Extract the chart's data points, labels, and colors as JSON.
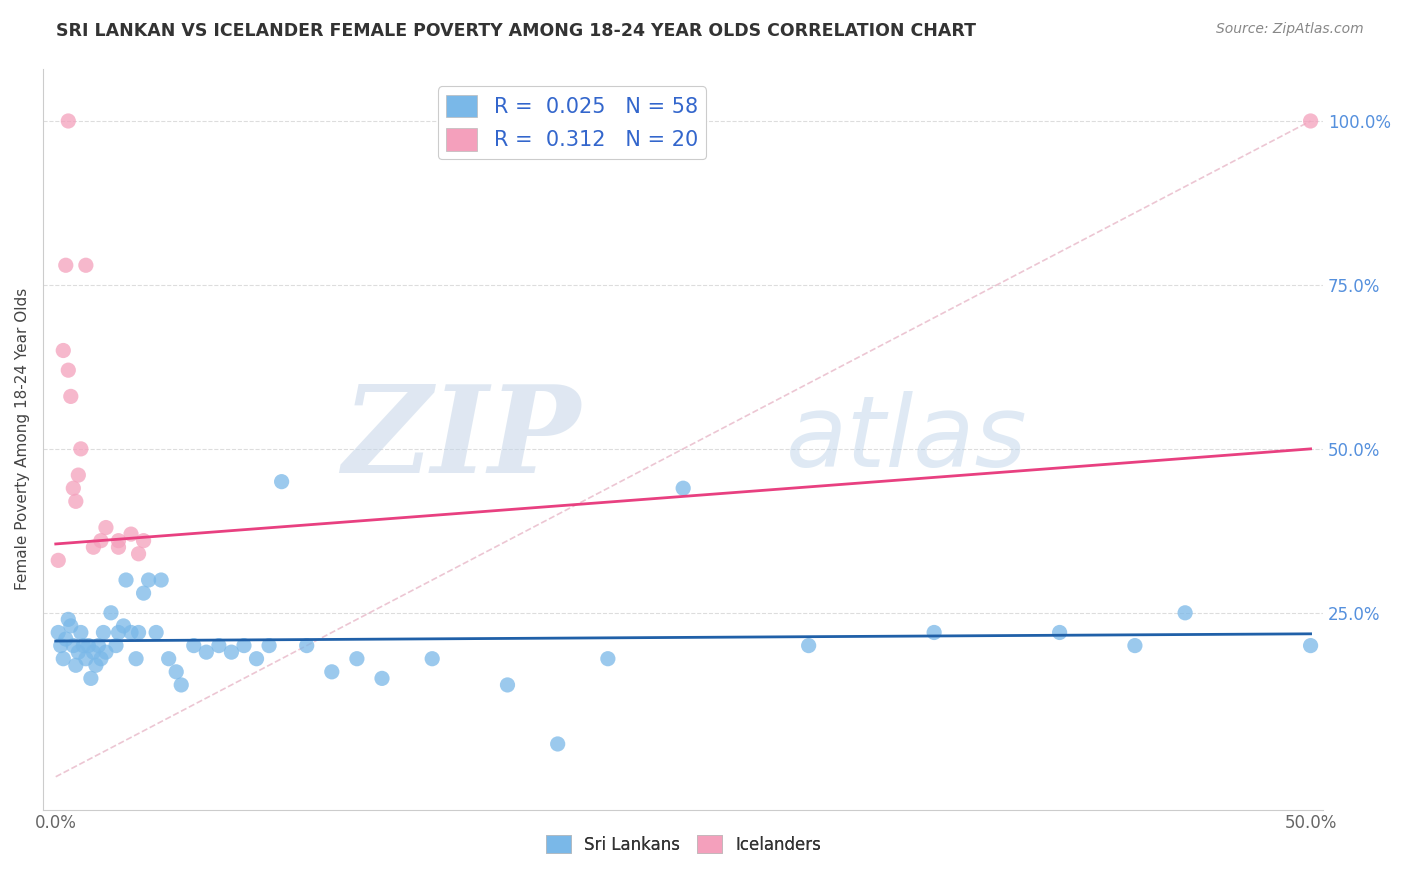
{
  "title": "SRI LANKAN VS ICELANDER FEMALE POVERTY AMONG 18-24 YEAR OLDS CORRELATION CHART",
  "source": "Source: ZipAtlas.com",
  "ylabel": "Female Poverty Among 18-24 Year Olds",
  "background_color": "#ffffff",
  "grid_color": "#dddddd",
  "sri_color": "#7ab8e8",
  "sri_trend_color": "#2060a8",
  "ice_color": "#f4a0bc",
  "ice_trend_color": "#e84080",
  "ref_line_color": "#e8b8c8",
  "sri_x": [
    0.001,
    0.002,
    0.003,
    0.004,
    0.005,
    0.006,
    0.007,
    0.008,
    0.009,
    0.01,
    0.011,
    0.012,
    0.013,
    0.014,
    0.015,
    0.016,
    0.017,
    0.018,
    0.019,
    0.02,
    0.022,
    0.024,
    0.025,
    0.027,
    0.028,
    0.03,
    0.032,
    0.033,
    0.035,
    0.037,
    0.04,
    0.042,
    0.045,
    0.048,
    0.05,
    0.055,
    0.06,
    0.065,
    0.07,
    0.075,
    0.08,
    0.085,
    0.09,
    0.1,
    0.11,
    0.12,
    0.13,
    0.15,
    0.18,
    0.2,
    0.22,
    0.25,
    0.3,
    0.35,
    0.4,
    0.43,
    0.45,
    0.5
  ],
  "sri_y": [
    0.22,
    0.2,
    0.18,
    0.21,
    0.24,
    0.23,
    0.2,
    0.17,
    0.19,
    0.22,
    0.2,
    0.18,
    0.2,
    0.15,
    0.19,
    0.17,
    0.2,
    0.18,
    0.22,
    0.19,
    0.25,
    0.2,
    0.22,
    0.23,
    0.3,
    0.22,
    0.18,
    0.22,
    0.28,
    0.3,
    0.22,
    0.3,
    0.18,
    0.16,
    0.14,
    0.2,
    0.19,
    0.2,
    0.19,
    0.2,
    0.18,
    0.2,
    0.45,
    0.2,
    0.16,
    0.18,
    0.15,
    0.18,
    0.14,
    0.05,
    0.18,
    0.44,
    0.2,
    0.22,
    0.22,
    0.2,
    0.25,
    0.2
  ],
  "ice_x": [
    0.001,
    0.003,
    0.004,
    0.005,
    0.006,
    0.007,
    0.008,
    0.009,
    0.01,
    0.012,
    0.015,
    0.018,
    0.02,
    0.025,
    0.03,
    0.033,
    0.025,
    0.035,
    0.005,
    0.5
  ],
  "ice_y": [
    0.33,
    0.65,
    0.78,
    0.62,
    0.58,
    0.44,
    0.42,
    0.46,
    0.5,
    0.78,
    0.35,
    0.36,
    0.38,
    0.36,
    0.37,
    0.34,
    0.35,
    0.36,
    1.0,
    1.0
  ],
  "xlim": [
    0.0,
    0.5
  ],
  "ylim": [
    -0.05,
    1.08
  ],
  "ytick_vals": [
    0.25,
    0.5,
    0.75,
    1.0
  ],
  "ytick_labels": [
    "25.0%",
    "50.0%",
    "75.0%",
    "100.0%"
  ],
  "sri_R": 0.025,
  "sri_N": 58,
  "ice_R": 0.312,
  "ice_N": 20
}
